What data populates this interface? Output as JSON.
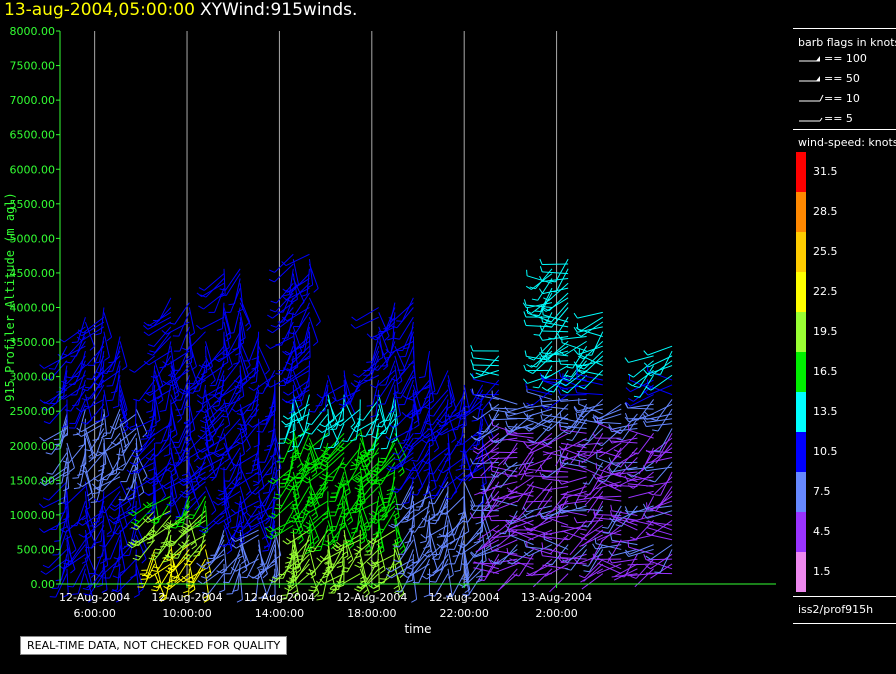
{
  "header": {
    "timestamp": "13-aug-2004,05:00:00",
    "product": "XYWind:915winds."
  },
  "chart_data": {
    "type": "scatter",
    "subtype": "wind-barb time-height",
    "ylabel": "915 Profiler Altitude (m agl)",
    "xlabel": "time",
    "ylim": [
      0,
      8000
    ],
    "xlim_hours": [
      4.5,
      35.5
    ],
    "yticks": [
      "0.00",
      "500.00",
      "1000.00",
      "1500.00",
      "2000.00",
      "2500.00",
      "3000.00",
      "3500.00",
      "4000.00",
      "4500.00",
      "5000.00",
      "5500.00",
      "6000.00",
      "6500.00",
      "7000.00",
      "7500.00",
      "8000.00"
    ],
    "xticks": [
      {
        "hour": 6,
        "date": "12-Aug-2004",
        "time": "6:00:00"
      },
      {
        "hour": 10,
        "date": "12-Aug-2004",
        "time": "10:00:00"
      },
      {
        "hour": 14,
        "date": "12-Aug-2004",
        "time": "14:00:00"
      },
      {
        "hour": 18,
        "date": "12-Aug-2004",
        "time": "18:00:00"
      },
      {
        "hour": 22,
        "date": "12-Aug-2004",
        "time": "22:00:00"
      },
      {
        "hour": 26,
        "date": "13-Aug-2004",
        "time": "2:00:00"
      }
    ],
    "grid": "vertical lines at time ticks",
    "profile_times_hours": [
      4.8,
      5.6,
      6.4,
      7.1,
      7.8,
      8.6,
      9.3,
      10.1,
      10.8,
      11.6,
      12.3,
      13.1,
      13.8,
      14.6,
      15.3,
      16.1,
      16.8,
      17.5,
      18.3,
      19.0,
      19.8,
      20.5,
      21.3,
      22.0,
      22.8,
      23.5,
      24.3,
      25.0,
      25.8,
      26.5,
      27.3,
      28.0,
      28.8,
      29.5,
      30.2,
      31.0
    ],
    "profile_top_m": [
      3500,
      3900,
      4000,
      3600,
      2700,
      3300,
      4200,
      4100,
      3700,
      4600,
      4600,
      3800,
      3100,
      4900,
      4800,
      3050,
      3100,
      3000,
      4000,
      4100,
      4200,
      3400,
      3100,
      3000,
      2900,
      3400,
      2600,
      2600,
      4600,
      4700,
      3600,
      4000,
      2600,
      2500,
      3300,
      3500
    ],
    "speed_profile": "weak winds below ~600 m and 9–12 h, strongest 17–24 kt bands at 500–1200 m around 8–11 h and 17–19 h; mostly 8–14 kt aloft; 1–8 kt after 23 h",
    "barb_flags": [
      {
        "label": "== 100",
        "knots": 100
      },
      {
        "label": "== 50",
        "knots": 50
      },
      {
        "label": "== 10",
        "knots": 10
      },
      {
        "label": "== 5",
        "knots": 5
      }
    ],
    "legend": {
      "title": "wind-speed: knots",
      "levels": [
        "31.5",
        "28.5",
        "25.5",
        "22.5",
        "19.5",
        "16.5",
        "13.5",
        "10.5",
        "7.5",
        "4.5",
        "1.5"
      ],
      "colors": [
        "#ff0000",
        "#ff8800",
        "#ffcc00",
        "#ffff00",
        "#99ff33",
        "#00ee00",
        "#00ffff",
        "#0000ff",
        "#6688ff",
        "#9933ff",
        "#ee88ee"
      ]
    }
  },
  "labels": {
    "barb_title": "barb flags in knots",
    "notice": "REAL-TIME DATA, NOT CHECKED FOR QUALITY",
    "source": "iss2/prof915h"
  },
  "colors": {
    "axis": "#33ff33",
    "background": "#000000",
    "grid": "#ffffff"
  }
}
